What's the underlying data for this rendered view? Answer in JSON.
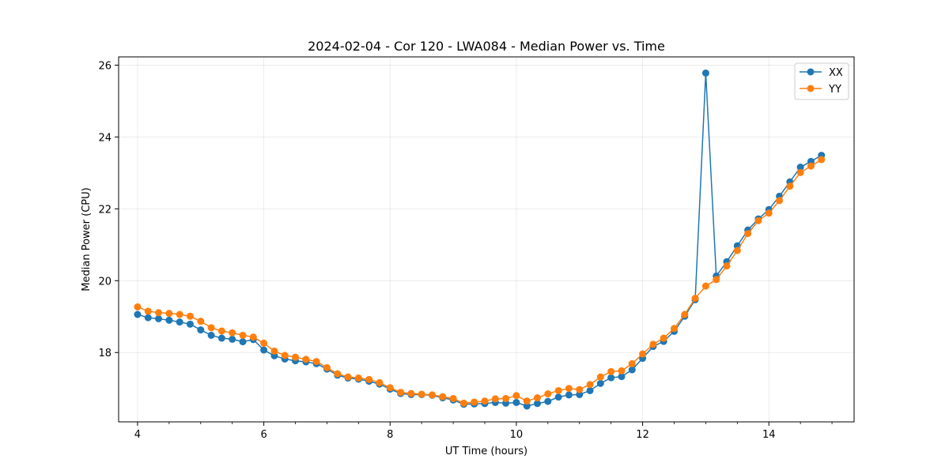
{
  "chart_data": {
    "type": "line",
    "title": "2024-02-04 - Cor 120 - LWA084 - Median Power vs. Time",
    "xlabel": "UT Time (hours)",
    "ylabel": "Median Power (CPU)",
    "xlim": [
      3.7,
      15.35
    ],
    "ylim": [
      16.07,
      26.23
    ],
    "xticks": [
      4,
      6,
      8,
      10,
      12,
      14
    ],
    "yticks": [
      18,
      20,
      22,
      24,
      26
    ],
    "grid": true,
    "legend_position": "top-right",
    "series": [
      {
        "name": "XX",
        "color": "#1f77b4",
        "marker": "circle",
        "x": [
          4.0,
          4.167,
          4.333,
          4.5,
          4.667,
          4.833,
          5.0,
          5.167,
          5.333,
          5.5,
          5.667,
          5.833,
          6.0,
          6.167,
          6.333,
          6.5,
          6.667,
          6.833,
          7.0,
          7.167,
          7.333,
          7.5,
          7.667,
          7.833,
          8.0,
          8.167,
          8.333,
          8.5,
          8.667,
          8.833,
          9.0,
          9.167,
          9.333,
          9.5,
          9.667,
          9.833,
          10.0,
          10.167,
          10.333,
          10.5,
          10.667,
          10.833,
          11.0,
          11.167,
          11.333,
          11.5,
          11.667,
          11.833,
          12.0,
          12.167,
          12.333,
          12.5,
          12.667,
          12.833,
          13.0,
          13.167,
          13.333,
          13.5,
          13.667,
          13.833,
          14.0,
          14.167,
          14.333,
          14.5,
          14.667,
          14.833
        ],
        "y": [
          19.06,
          18.97,
          18.94,
          18.9,
          18.85,
          18.79,
          18.63,
          18.48,
          18.4,
          18.37,
          18.3,
          18.36,
          18.07,
          17.91,
          17.82,
          17.77,
          17.74,
          17.69,
          17.54,
          17.37,
          17.29,
          17.26,
          17.2,
          17.12,
          16.98,
          16.86,
          16.83,
          16.83,
          16.81,
          16.74,
          16.68,
          16.56,
          16.57,
          16.58,
          16.61,
          16.59,
          16.61,
          16.51,
          16.58,
          16.64,
          16.76,
          16.82,
          16.83,
          16.94,
          17.14,
          17.3,
          17.33,
          17.52,
          17.84,
          18.17,
          18.31,
          18.59,
          19.01,
          19.47,
          25.78,
          20.13,
          20.53,
          20.97,
          21.41,
          21.72,
          21.98,
          22.35,
          22.75,
          23.16,
          23.32,
          23.49
        ]
      },
      {
        "name": "YY",
        "color": "#ff7f0e",
        "marker": "circle",
        "x": [
          4.0,
          4.167,
          4.333,
          4.5,
          4.667,
          4.833,
          5.0,
          5.167,
          5.333,
          5.5,
          5.667,
          5.833,
          6.0,
          6.167,
          6.333,
          6.5,
          6.667,
          6.833,
          7.0,
          7.167,
          7.333,
          7.5,
          7.667,
          7.833,
          8.0,
          8.167,
          8.333,
          8.5,
          8.667,
          8.833,
          9.0,
          9.167,
          9.333,
          9.5,
          9.667,
          9.833,
          10.0,
          10.167,
          10.333,
          10.5,
          10.667,
          10.833,
          11.0,
          11.167,
          11.333,
          11.5,
          11.667,
          11.833,
          12.0,
          12.167,
          12.333,
          12.5,
          12.667,
          12.833,
          13.0,
          13.167,
          13.333,
          13.5,
          13.667,
          13.833,
          14.0,
          14.167,
          14.333,
          14.5,
          14.667,
          14.833
        ],
        "y": [
          19.27,
          19.15,
          19.11,
          19.09,
          19.06,
          19.01,
          18.87,
          18.69,
          18.6,
          18.55,
          18.48,
          18.43,
          18.26,
          18.04,
          17.92,
          17.87,
          17.81,
          17.75,
          17.58,
          17.41,
          17.32,
          17.29,
          17.25,
          17.16,
          17.02,
          16.89,
          16.86,
          16.84,
          16.82,
          16.77,
          16.72,
          16.59,
          16.62,
          16.65,
          16.71,
          16.72,
          16.8,
          16.65,
          16.74,
          16.85,
          16.94,
          17.0,
          16.97,
          17.11,
          17.32,
          17.47,
          17.49,
          17.69,
          17.96,
          18.23,
          18.4,
          18.67,
          19.06,
          19.51,
          19.85,
          20.03,
          20.41,
          20.84,
          21.31,
          21.67,
          21.88,
          22.23,
          22.63,
          23.01,
          23.19,
          23.37
        ]
      }
    ]
  }
}
